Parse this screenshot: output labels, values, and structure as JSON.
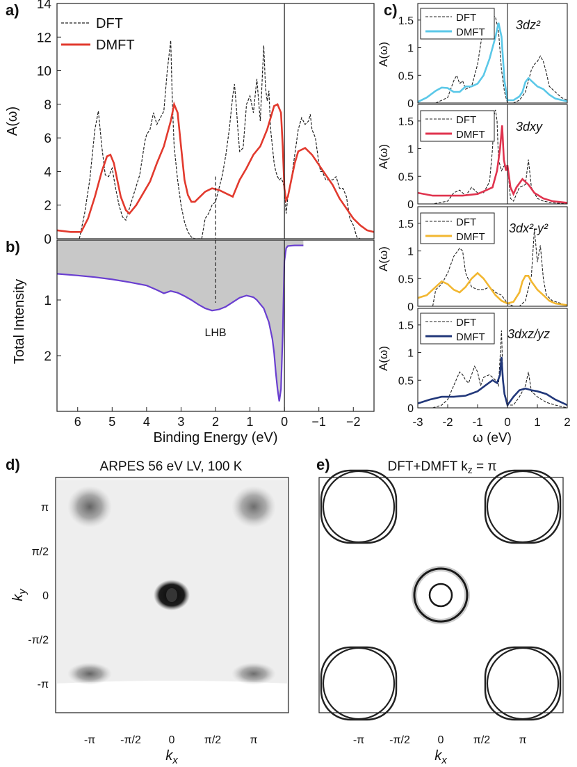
{
  "panel_labels": {
    "a": "a)",
    "b": "b)",
    "c": "c)",
    "d": "d)",
    "e": "e)"
  },
  "chart_data": [
    {
      "id": "a",
      "type": "line",
      "ylabel": "A(ω)",
      "xlim": [
        6.6,
        -2.6
      ],
      "ylim": [
        0,
        14
      ],
      "yticks": [
        "0",
        "2",
        "4",
        "6",
        "8",
        "10",
        "12",
        "14"
      ],
      "legend": {
        "position": "top-left",
        "entries": [
          "DFT",
          "DMFT"
        ]
      },
      "series": [
        {
          "name": "DFT",
          "style": "dashed",
          "color": "#222222",
          "x": [
            5.95,
            5.8,
            5.65,
            5.5,
            5.4,
            5.3,
            5.2,
            5.1,
            5.0,
            4.9,
            4.8,
            4.7,
            4.6,
            4.5,
            4.35,
            4.2,
            4.05,
            4.0,
            3.9,
            3.8,
            3.7,
            3.6,
            3.5,
            3.4,
            3.3,
            3.25,
            3.2,
            3.1,
            3.0,
            2.9,
            2.8,
            2.7,
            2.6,
            2.5,
            2.4,
            2.3,
            2.2,
            2.1,
            2.0,
            1.9,
            1.8,
            1.7,
            1.6,
            1.5,
            1.45,
            1.4,
            1.35,
            1.3,
            1.2,
            1.1,
            1.0,
            0.9,
            0.8,
            0.7,
            0.6,
            0.55,
            0.5,
            0.45,
            0.4,
            0.3,
            0.25,
            0.2,
            0.15,
            0.1,
            0.05,
            0.0,
            -0.05,
            -0.1,
            -0.2,
            -0.3,
            -0.4,
            -0.5,
            -0.6,
            -0.7,
            -0.75,
            -0.8,
            -0.9,
            -1.0,
            -1.05,
            -1.1,
            -1.2,
            -1.3,
            -1.4,
            -1.5,
            -1.6,
            -1.7,
            -1.8,
            -1.9,
            -2.0,
            -2.1,
            -2.2
          ],
          "y": [
            0,
            1.5,
            3.5,
            6.5,
            7.6,
            5.5,
            3.8,
            3.7,
            4.2,
            3.0,
            2.0,
            1.3,
            1.1,
            1.8,
            2.8,
            3.8,
            5.8,
            6.2,
            6.5,
            7.5,
            6.8,
            7.2,
            7.6,
            10.0,
            11.8,
            8.0,
            5.5,
            3.5,
            2.0,
            1.0,
            0.4,
            0.1,
            0,
            0,
            0,
            1.2,
            1.5,
            2.0,
            2.2,
            3.0,
            3.8,
            5.0,
            6.5,
            8.5,
            9.2,
            8.0,
            6.5,
            5.2,
            5.4,
            8.0,
            8.5,
            7.5,
            9.5,
            7.0,
            11.5,
            9.0,
            8.2,
            8.8,
            6.5,
            4.5,
            4.0,
            3.7,
            3.5,
            3.6,
            3.4,
            3.0,
            1.5,
            2.5,
            3.5,
            5.0,
            6.5,
            7.2,
            6.8,
            7.0,
            7.4,
            6.5,
            6.0,
            4.5,
            4.0,
            4.0,
            3.5,
            3.5,
            3.5,
            3.7,
            3.0,
            3.0,
            2.5,
            1.2,
            0.8,
            0.1,
            0
          ]
        },
        {
          "name": "DMFT",
          "style": "solid",
          "color": "#e23a2e",
          "x": [
            6.6,
            6.2,
            5.9,
            5.7,
            5.5,
            5.3,
            5.15,
            5.05,
            4.95,
            4.85,
            4.75,
            4.6,
            4.5,
            4.3,
            4.1,
            3.9,
            3.7,
            3.5,
            3.3,
            3.2,
            3.1,
            3.0,
            2.9,
            2.8,
            2.7,
            2.6,
            2.5,
            2.3,
            2.1,
            1.9,
            1.7,
            1.5,
            1.3,
            1.1,
            0.9,
            0.7,
            0.5,
            0.4,
            0.3,
            0.2,
            0.1,
            0.05,
            0.0,
            -0.05,
            -0.1,
            -0.2,
            -0.3,
            -0.4,
            -0.6,
            -0.8,
            -1.0,
            -1.2,
            -1.4,
            -1.6,
            -1.8,
            -2.0,
            -2.2,
            -2.4,
            -2.6
          ],
          "y": [
            0.5,
            0.4,
            0.4,
            1.2,
            2.5,
            4.0,
            4.9,
            5.0,
            4.5,
            3.5,
            2.5,
            1.7,
            1.5,
            2.0,
            2.7,
            3.4,
            4.5,
            5.5,
            7.0,
            8.0,
            7.5,
            5.5,
            3.5,
            2.6,
            2.2,
            2.2,
            2.4,
            2.8,
            3.0,
            2.9,
            2.7,
            2.5,
            3.5,
            4.2,
            5.0,
            5.5,
            6.5,
            7.2,
            7.9,
            8.0,
            7.5,
            5.5,
            3.0,
            2.3,
            2.5,
            3.5,
            4.5,
            5.2,
            5.4,
            5.0,
            4.4,
            3.8,
            3.2,
            2.4,
            1.8,
            1.2,
            0.8,
            0.5,
            0.4
          ]
        }
      ]
    },
    {
      "id": "b",
      "type": "area",
      "ylabel": "Total Intensity",
      "xlabel": "Binding Energy (eV)",
      "xlim": [
        6.6,
        -2.6
      ],
      "ylim": [
        0,
        3.0
      ],
      "y_inverted": true,
      "yticks": [
        "1",
        "2"
      ],
      "xticks": [
        "6",
        "5",
        "4",
        "3",
        "2",
        "1",
        "0",
        "−1",
        "−2"
      ],
      "annotation": {
        "text": "LHB",
        "x": 2.0
      },
      "series": [
        {
          "name": "Total Intensity",
          "color": "#6a3fd0",
          "fill": "#c8c8c8",
          "x": [
            6.6,
            6.0,
            5.5,
            5.0,
            4.5,
            4.0,
            3.7,
            3.5,
            3.3,
            3.1,
            2.9,
            2.7,
            2.5,
            2.3,
            2.1,
            2.0,
            1.9,
            1.7,
            1.5,
            1.3,
            1.1,
            0.9,
            0.8,
            0.6,
            0.45,
            0.35,
            0.3,
            0.25,
            0.2,
            0.15,
            0.1,
            0.05,
            0.0,
            -0.05,
            -0.1,
            -0.3,
            -0.55
          ],
          "y": [
            0.53,
            0.56,
            0.59,
            0.63,
            0.68,
            0.74,
            0.82,
            0.88,
            0.84,
            0.87,
            0.93,
            1.0,
            1.08,
            1.15,
            1.19,
            1.18,
            1.17,
            1.12,
            1.04,
            0.96,
            0.92,
            0.95,
            1.0,
            1.15,
            1.4,
            1.7,
            1.95,
            2.3,
            2.6,
            2.82,
            2.6,
            1.6,
            0.3,
            0.07,
            0.03,
            0.02,
            0.02
          ]
        }
      ]
    },
    {
      "id": "c1",
      "type": "line",
      "ylabel": "A(ω)",
      "orbital": "3dz²",
      "xlim": [
        -3,
        2
      ],
      "ylim": [
        0,
        1.8
      ],
      "yticks": [
        "0",
        "0.5",
        "1",
        "1.5"
      ],
      "legend": {
        "position": "top-left",
        "entries": [
          "DFT",
          "DMFT"
        ]
      },
      "series": [
        {
          "name": "DFT",
          "style": "dashed",
          "color": "#222222",
          "x": [
            -2.4,
            -2.0,
            -1.8,
            -1.7,
            -1.6,
            -1.5,
            -1.4,
            -1.2,
            -1.0,
            -0.8,
            -0.6,
            -0.5,
            -0.4,
            -0.3,
            -0.2,
            -0.1,
            0.0,
            0.2,
            0.4,
            0.6,
            0.8,
            0.9,
            1.0,
            1.1,
            1.2,
            1.3,
            1.4,
            1.6,
            1.8,
            2.0
          ],
          "y": [
            0,
            0.1,
            0.4,
            0.5,
            0.35,
            0.4,
            0.25,
            0.3,
            0.7,
            1.4,
            1.55,
            1.6,
            1.55,
            1.3,
            0.6,
            0.2,
            0,
            0,
            0.05,
            0.2,
            0.6,
            0.7,
            0.75,
            0.85,
            0.75,
            0.55,
            0.3,
            0.2,
            0.1,
            0.05
          ]
        },
        {
          "name": "DMFT",
          "style": "solid",
          "color": "#5bc8e8",
          "x": [
            -3,
            -2.7,
            -2.4,
            -2.2,
            -2.0,
            -1.8,
            -1.6,
            -1.4,
            -1.2,
            -1.0,
            -0.8,
            -0.6,
            -0.4,
            -0.3,
            -0.2,
            -0.1,
            0.0,
            0.2,
            0.4,
            0.5,
            0.6,
            0.7,
            0.8,
            1.0,
            1.2,
            1.4,
            1.6,
            2.0
          ],
          "y": [
            0.02,
            0.1,
            0.22,
            0.28,
            0.27,
            0.2,
            0.2,
            0.3,
            0.3,
            0.35,
            0.5,
            0.8,
            1.2,
            1.45,
            1.2,
            0.4,
            0.05,
            0.05,
            0.12,
            0.2,
            0.38,
            0.45,
            0.4,
            0.3,
            0.25,
            0.15,
            0.08,
            0.03
          ]
        }
      ]
    },
    {
      "id": "c2",
      "type": "line",
      "ylabel": "A(ω)",
      "orbital": "3dxy",
      "xlim": [
        -3,
        2
      ],
      "ylim": [
        0,
        1.8
      ],
      "yticks": [
        "0",
        "0.5",
        "1",
        "1.5"
      ],
      "legend": {
        "position": "top-left",
        "entries": [
          "DFT",
          "DMFT"
        ]
      },
      "series": [
        {
          "name": "DFT",
          "style": "dashed",
          "color": "#222222",
          "x": [
            -3,
            -2.5,
            -2.0,
            -1.8,
            -1.6,
            -1.4,
            -1.2,
            -1.0,
            -0.8,
            -0.6,
            -0.5,
            -0.45,
            -0.4,
            -0.35,
            -0.3,
            -0.2,
            -0.1,
            0.0,
            0.1,
            0.2,
            0.4,
            0.6,
            0.7,
            0.8,
            1.0,
            1.2,
            1.5,
            2.0
          ],
          "y": [
            0,
            0,
            0.05,
            0.2,
            0.25,
            0.15,
            0.3,
            0.2,
            0.2,
            0.4,
            1.0,
            1.6,
            1.7,
            1.5,
            0.8,
            0.6,
            0.7,
            0.7,
            0.1,
            0.05,
            0.3,
            0.35,
            0.8,
            0.3,
            0.1,
            0.05,
            0.02,
            0
          ]
        },
        {
          "name": "DMFT",
          "style": "solid",
          "color": "#e0334e",
          "x": [
            -3,
            -2.5,
            -2.0,
            -1.5,
            -1.0,
            -0.7,
            -0.5,
            -0.35,
            -0.25,
            -0.18,
            -0.12,
            -0.05,
            0.0,
            0.1,
            0.2,
            0.3,
            0.5,
            0.7,
            0.9,
            1.2,
            1.5,
            2.0
          ],
          "y": [
            0.2,
            0.15,
            0.15,
            0.15,
            0.18,
            0.25,
            0.3,
            0.6,
            1.0,
            1.42,
            0.8,
            0.6,
            0.7,
            0.3,
            0.18,
            0.3,
            0.45,
            0.35,
            0.2,
            0.1,
            0.05,
            0.02
          ]
        }
      ]
    },
    {
      "id": "c3",
      "type": "line",
      "ylabel": "A(ω)",
      "orbital": "3dx²-y²",
      "xlim": [
        -3,
        2
      ],
      "ylim": [
        0,
        1.8
      ],
      "yticks": [
        "0",
        "0.5",
        "1",
        "1.5"
      ],
      "legend": {
        "position": "top-left",
        "entries": [
          "DFT",
          "DMFT"
        ]
      },
      "series": [
        {
          "name": "DFT",
          "style": "dashed",
          "color": "#222222",
          "x": [
            -2.5,
            -2.4,
            -2.2,
            -2.0,
            -1.8,
            -1.6,
            -1.5,
            -1.4,
            -1.2,
            -1.0,
            -0.8,
            -0.6,
            -0.4,
            -0.2,
            0.0,
            0.2,
            0.4,
            0.6,
            0.8,
            0.9,
            1.0,
            1.1,
            1.2,
            1.3,
            1.5,
            1.8,
            2.0
          ],
          "y": [
            0,
            0.3,
            0.4,
            0.6,
            0.9,
            1.05,
            1.0,
            0.6,
            0.35,
            0.3,
            0.3,
            0.35,
            0.25,
            0.2,
            0.05,
            0,
            0,
            0.1,
            0.55,
            1.4,
            0.8,
            1.1,
            0.5,
            0.2,
            0.1,
            0.05,
            0
          ]
        },
        {
          "name": "DMFT",
          "style": "solid",
          "color": "#f2b731",
          "x": [
            -3,
            -2.7,
            -2.4,
            -2.2,
            -2.0,
            -1.8,
            -1.6,
            -1.4,
            -1.2,
            -1.0,
            -0.8,
            -0.6,
            -0.4,
            -0.2,
            0.0,
            0.2,
            0.4,
            0.5,
            0.6,
            0.7,
            0.8,
            1.0,
            1.2,
            1.4,
            1.6,
            2.0
          ],
          "y": [
            0.15,
            0.2,
            0.35,
            0.45,
            0.4,
            0.3,
            0.25,
            0.35,
            0.5,
            0.6,
            0.5,
            0.35,
            0.2,
            0.1,
            0.05,
            0.08,
            0.25,
            0.45,
            0.55,
            0.55,
            0.45,
            0.3,
            0.2,
            0.1,
            0.05,
            0.02
          ]
        }
      ]
    },
    {
      "id": "c4",
      "type": "line",
      "ylabel": "A(ω)",
      "xlabel": "ω (eV)",
      "orbital": "3dxz/yz",
      "xlim": [
        -3,
        2
      ],
      "ylim": [
        0,
        1.8
      ],
      "yticks": [
        "0",
        "0.5",
        "1",
        "1.5"
      ],
      "xticks": [
        "-3",
        "-2",
        "-1",
        "0",
        "1",
        "2"
      ],
      "legend": {
        "position": "top-left",
        "entries": [
          "DFT",
          "DMFT"
        ]
      },
      "series": [
        {
          "name": "DFT",
          "style": "dashed",
          "color": "#222222",
          "x": [
            -2.5,
            -2.2,
            -2.0,
            -1.8,
            -1.6,
            -1.5,
            -1.4,
            -1.3,
            -1.1,
            -1.0,
            -0.9,
            -0.8,
            -0.6,
            -0.4,
            -0.3,
            -0.25,
            -0.2,
            -0.15,
            -0.1,
            0.0,
            0.2,
            0.4,
            0.6,
            0.7,
            0.8,
            1.0,
            1.3,
            1.6,
            2.0
          ],
          "y": [
            0,
            0.05,
            0.15,
            0.4,
            0.65,
            0.6,
            0.5,
            0.45,
            0.75,
            0.65,
            0.4,
            0.55,
            0.6,
            0.5,
            0.4,
            0.9,
            1.4,
            0.5,
            0.3,
            0.05,
            0.05,
            0.2,
            0.4,
            0.65,
            0.3,
            0.2,
            0.1,
            0.05,
            0
          ]
        },
        {
          "name": "DMFT",
          "style": "solid",
          "color": "#22387a",
          "x": [
            -3,
            -2.6,
            -2.2,
            -1.8,
            -1.4,
            -1.0,
            -0.7,
            -0.5,
            -0.35,
            -0.25,
            -0.2,
            -0.15,
            -0.1,
            0.0,
            0.2,
            0.4,
            0.6,
            0.8,
            1.0,
            1.3,
            1.6,
            2.0
          ],
          "y": [
            0.08,
            0.15,
            0.2,
            0.2,
            0.22,
            0.3,
            0.42,
            0.5,
            0.45,
            0.6,
            0.92,
            0.5,
            0.25,
            0.05,
            0.2,
            0.32,
            0.35,
            0.32,
            0.3,
            0.25,
            0.15,
            0.05
          ]
        }
      ]
    },
    {
      "id": "d",
      "type": "heatmap",
      "title": "ARPES 56 eV LV, 100 K",
      "xlabel": "k",
      "xlabel_sub": "x",
      "ylabel": "k",
      "ylabel_sub": "y",
      "xticks": [
        "-π",
        "-π/2",
        "0",
        "π/2",
        "π"
      ],
      "yticks": [
        "π",
        "π/2",
        "0",
        "-π/2",
        "-π"
      ],
      "spots": [
        {
          "kx": 0,
          "ky": 0,
          "intensity": 1.0
        },
        {
          "kx": -1,
          "ky": 1,
          "intensity": 0.45
        },
        {
          "kx": 1,
          "ky": 1,
          "intensity": 0.4
        },
        {
          "kx": -1,
          "ky": -1,
          "intensity": 0.45
        },
        {
          "kx": 1,
          "ky": -1,
          "intensity": 0.4
        }
      ]
    },
    {
      "id": "e",
      "type": "heatmap",
      "title": "DFT+DMFT  k",
      "title_sub": "z",
      "title_tail": " = π",
      "xlabel": "k",
      "xlabel_sub": "x",
      "xticks": [
        "-π",
        "-π/2",
        "0",
        "π/2",
        "π"
      ]
    }
  ]
}
